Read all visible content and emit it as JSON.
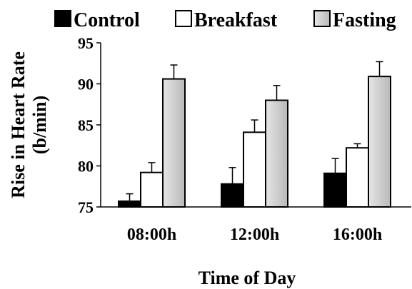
{
  "chart_data": {
    "type": "bar",
    "title": "",
    "xlabel": "Time of Day",
    "ylabel_line1": "Rise in Heart Rate",
    "ylabel_line2": "(b/min)",
    "categories": [
      "08:00h",
      "12:00h",
      "16:00h"
    ],
    "ylim": [
      75,
      95
    ],
    "yticks": [
      75,
      80,
      85,
      90,
      95
    ],
    "grid": false,
    "legend_position": "top",
    "series": [
      {
        "name": "Control",
        "values": [
          75.7,
          77.8,
          79.1
        ],
        "errors": [
          0.9,
          2.0,
          1.8
        ],
        "color": "#000000"
      },
      {
        "name": "Breakfast",
        "values": [
          79.2,
          84.1,
          82.2
        ],
        "errors": [
          1.2,
          1.5,
          0.5
        ],
        "color": "#ffffff"
      },
      {
        "name": "Fasting",
        "values": [
          90.6,
          88.0,
          90.9
        ],
        "errors": [
          1.7,
          1.8,
          1.8
        ],
        "color": "#c8c8c8"
      }
    ]
  }
}
